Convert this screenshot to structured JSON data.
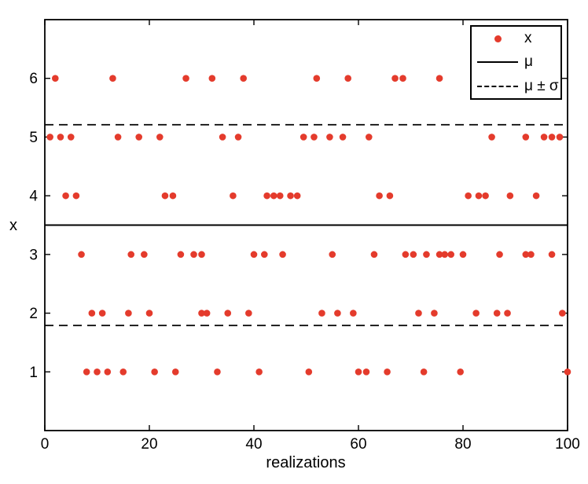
{
  "chart_data": {
    "type": "scatter",
    "title": "",
    "xlabel": "realizations",
    "ylabel": "x",
    "xlim": [
      0,
      100
    ],
    "ylim": [
      0,
      7
    ],
    "xticks": [
      0,
      20,
      40,
      60,
      80,
      100
    ],
    "yticks": [
      1,
      2,
      3,
      4,
      5,
      6
    ],
    "grid": false,
    "statistics": {
      "mu": 3.5,
      "sigma": 1.71,
      "mu_plus_sigma": 5.21,
      "mu_minus_sigma": 1.79
    },
    "legend": {
      "position": "top-right",
      "entries": [
        {
          "label": "x",
          "marker": "dot"
        },
        {
          "label": "μ",
          "marker": "solid-line"
        },
        {
          "label": "μ ± σ",
          "marker": "dashed-line"
        }
      ]
    },
    "colors": {
      "marker": "#e43b2c",
      "line": "#000000",
      "background": "#ffffff"
    },
    "series": [
      {
        "value": 6,
        "x": [
          2,
          13,
          27,
          32,
          38,
          52,
          58,
          67,
          68.5,
          75.5
        ]
      },
      {
        "value": 5,
        "x": [
          1,
          3,
          5,
          14,
          18,
          22,
          34,
          37,
          49.5,
          51.5,
          54.5,
          57,
          62,
          85.5,
          92,
          95.5,
          97,
          98.5
        ]
      },
      {
        "value": 4,
        "x": [
          4,
          6,
          23,
          24.5,
          36,
          42.5,
          43.8,
          45,
          47,
          48.3,
          64,
          66,
          81,
          83,
          84.3,
          89,
          94
        ]
      },
      {
        "value": 3,
        "x": [
          7,
          16.5,
          19,
          26,
          28.5,
          30,
          40,
          42,
          45.5,
          55,
          63,
          69,
          70.5,
          73,
          75.5,
          76.5,
          77.7,
          80,
          87,
          92,
          93,
          97
        ]
      },
      {
        "value": 2,
        "x": [
          9,
          11,
          16,
          20,
          30,
          31,
          35,
          39,
          53,
          56,
          59,
          71.5,
          74.5,
          82.5,
          86.5,
          88.5,
          99
        ]
      },
      {
        "value": 1,
        "x": [
          8,
          10,
          12,
          15,
          21,
          25,
          33,
          41,
          50.5,
          60,
          61.5,
          65.5,
          72.5,
          79.5,
          100
        ]
      }
    ]
  }
}
